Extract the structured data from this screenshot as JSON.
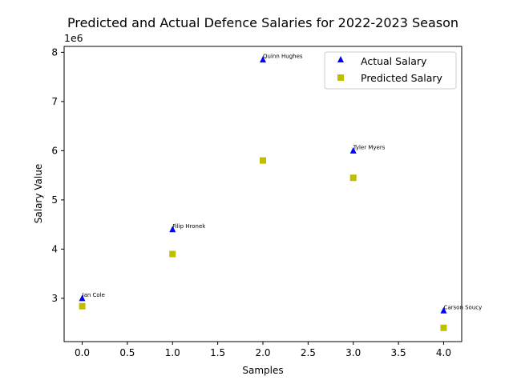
{
  "chart_data": {
    "type": "scatter",
    "title": "Predicted and Actual Defence Salaries for 2022-2023 Season",
    "xlabel": "Samples",
    "ylabel": "Salary Value",
    "y_offset_label": "1e6",
    "xlim": [
      -0.2,
      4.2
    ],
    "ylim": [
      2.12,
      8.12
    ],
    "x_ticks": [
      0.0,
      0.5,
      1.0,
      1.5,
      2.0,
      2.5,
      3.0,
      3.5,
      4.0
    ],
    "x_tick_labels": [
      "0.0",
      "0.5",
      "1.0",
      "1.5",
      "2.0",
      "2.5",
      "3.0",
      "3.5",
      "4.0"
    ],
    "y_ticks": [
      3,
      4,
      5,
      6,
      7,
      8
    ],
    "y_tick_labels": [
      "3",
      "4",
      "5",
      "6",
      "7",
      "8"
    ],
    "x": [
      0,
      1,
      2,
      3,
      4
    ],
    "series": [
      {
        "name": "Actual Salary",
        "marker": "triangle",
        "color": "#0000ff",
        "values": [
          3.0,
          4.4,
          7.85,
          6.0,
          2.75
        ]
      },
      {
        "name": "Predicted Salary",
        "marker": "square",
        "color": "#bfbf00",
        "values": [
          2.84,
          3.9,
          5.8,
          5.45,
          2.4
        ]
      }
    ],
    "annotations": [
      "Ian Cole",
      "Filip Hronek",
      "Quinn Hughes",
      "Tyler Myers",
      "Carson Soucy"
    ],
    "legend_position": "top-right",
    "grid": false
  }
}
